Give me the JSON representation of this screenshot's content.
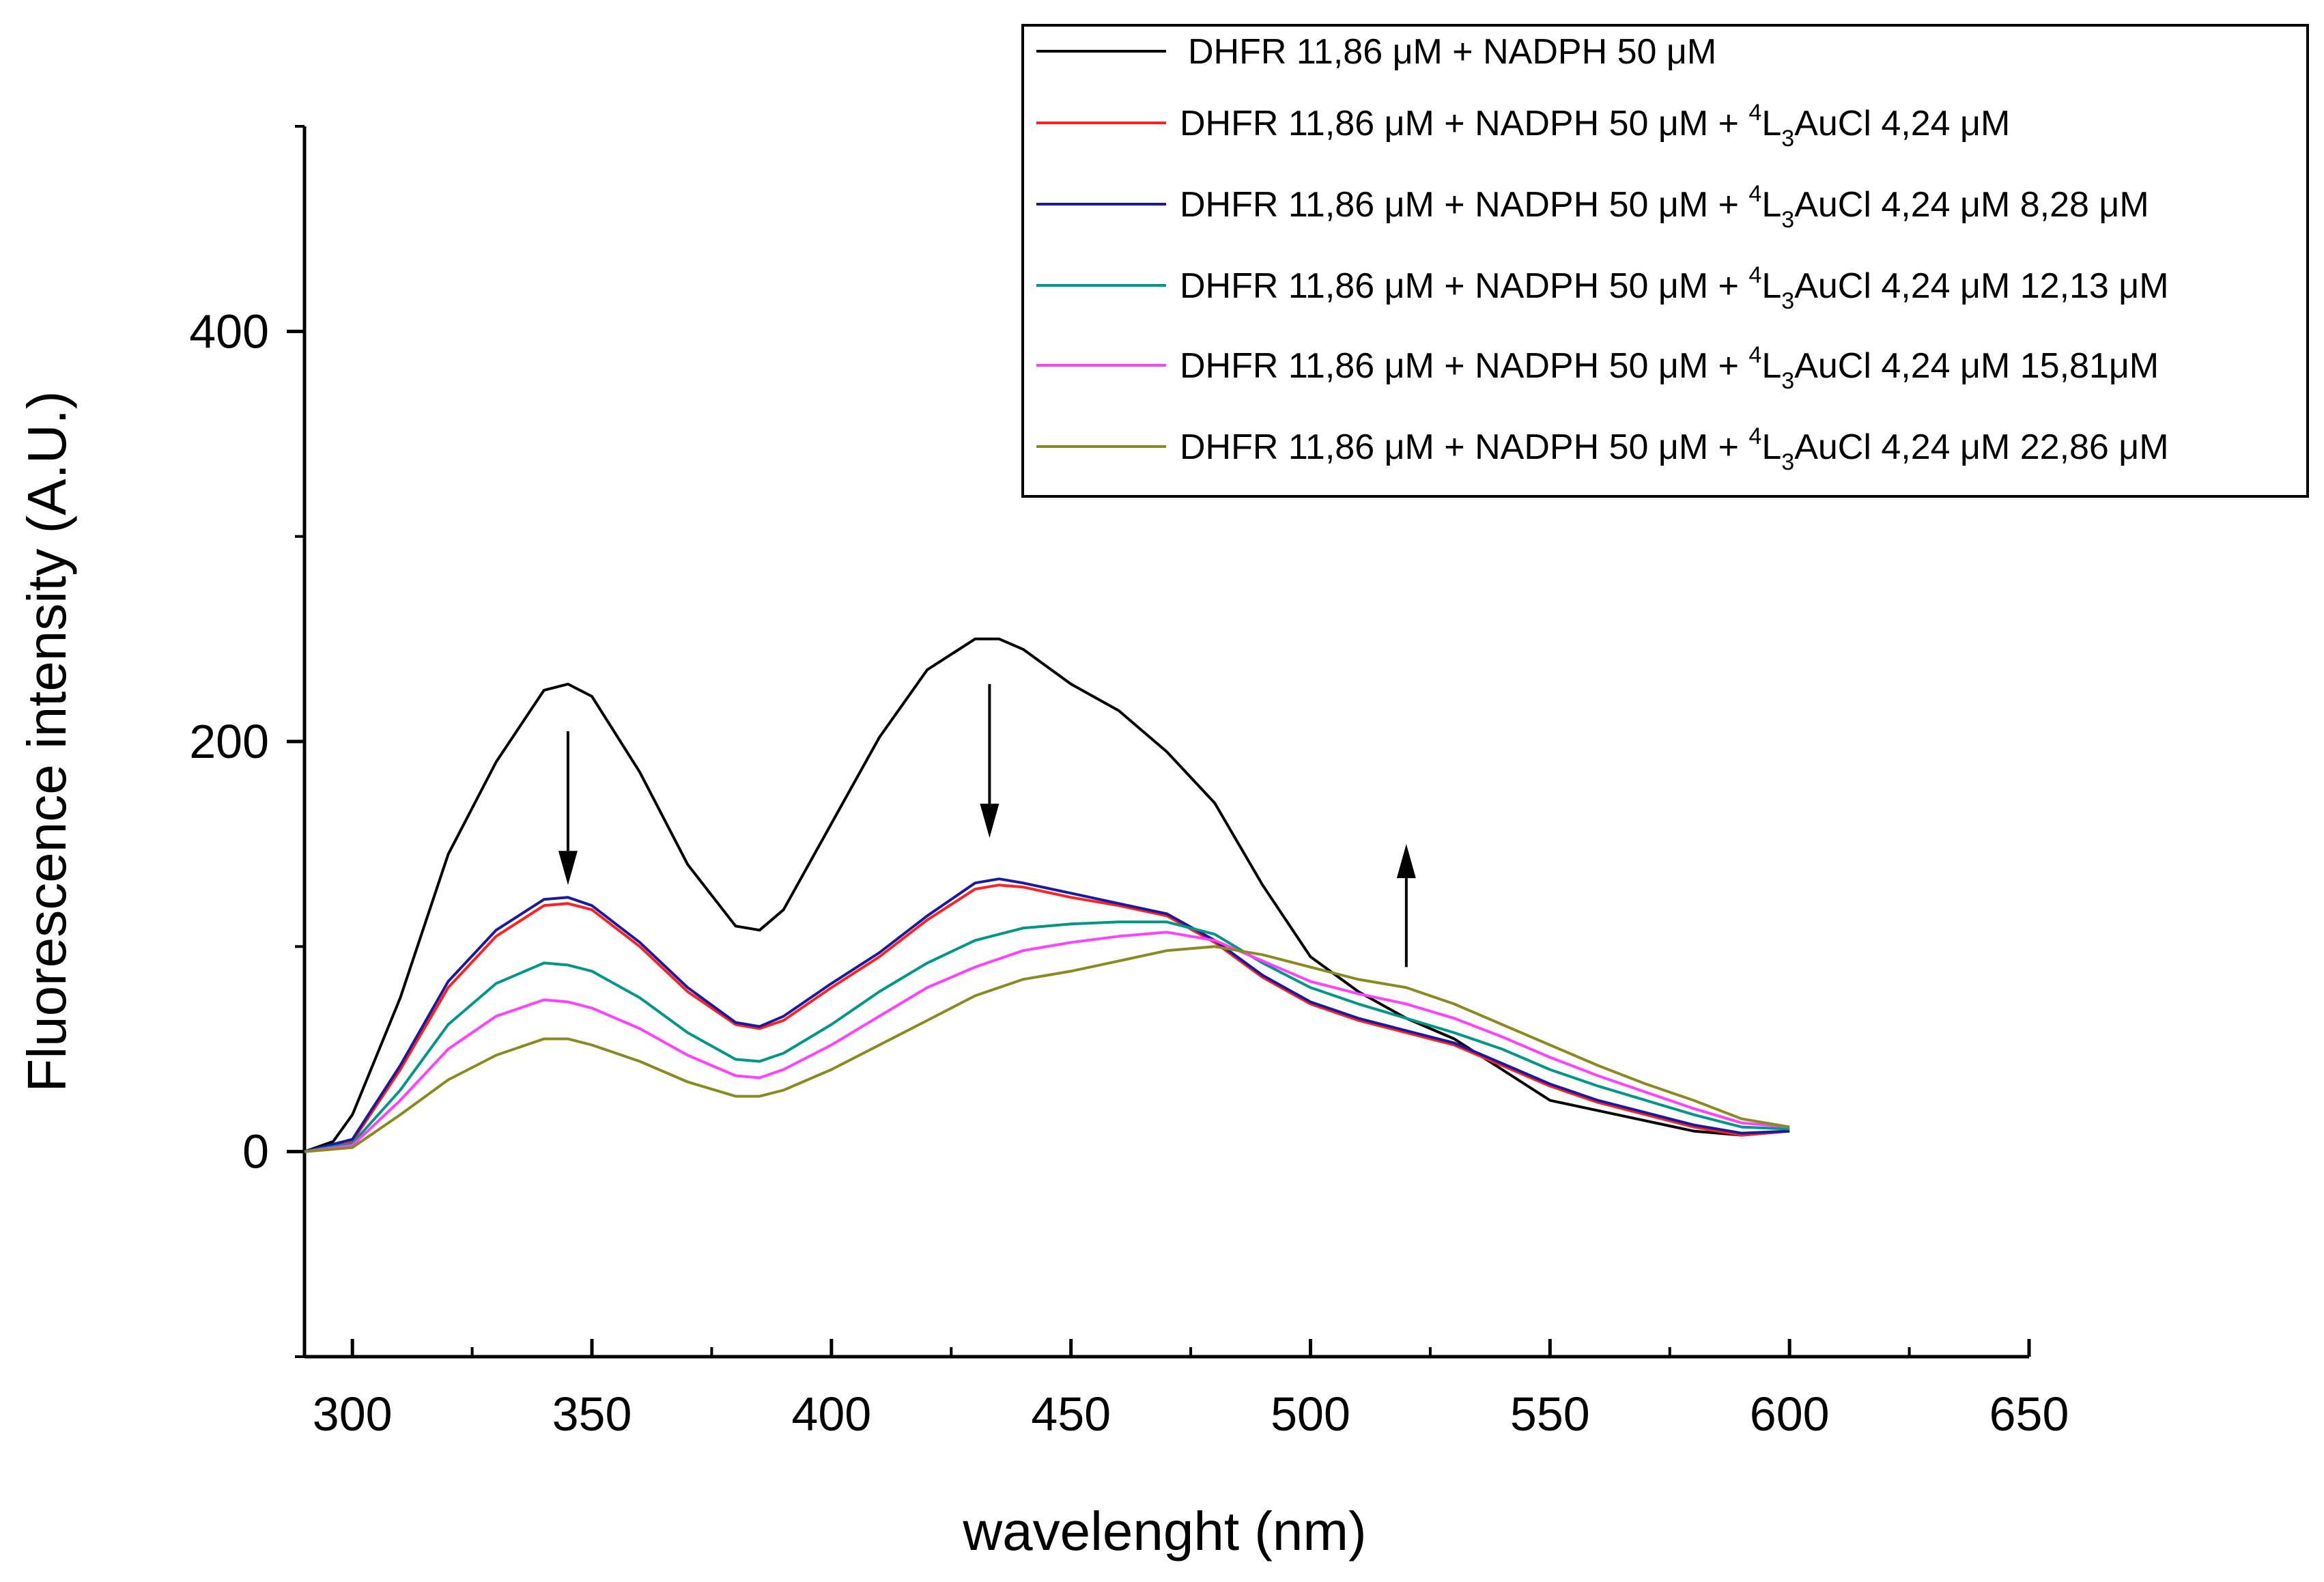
{
  "chart_data": {
    "type": "line",
    "title": "",
    "xlabel": "wavelenght (nm)",
    "ylabel": "Fluorescence intensity (A.U.)",
    "xlim": [
      290,
      650
    ],
    "ylim": [
      -100,
      500
    ],
    "xticks": [
      300,
      350,
      400,
      450,
      500,
      550,
      600,
      650
    ],
    "xtick_labels": [
      "300",
      "350",
      "400",
      "450",
      "500",
      "550",
      "600",
      "650"
    ],
    "yticks": [
      0,
      200,
      400
    ],
    "ytick_labels": [
      "0",
      "200",
      "400"
    ],
    "legend_position": "top-right",
    "series": [
      {
        "name": "DHFR 11,86 μM + NADPH 50 μM",
        "legend": {
          "before": "DHFR 11,86 μM + NADPH 50 μM",
          "sup": "",
          "mid": "",
          "sub": "",
          "after": ""
        },
        "color": "#000000",
        "x": [
          290,
          296,
          300,
          310,
          320,
          330,
          340,
          345,
          350,
          360,
          370,
          380,
          385,
          390,
          400,
          410,
          420,
          430,
          435,
          440,
          450,
          460,
          470,
          480,
          490,
          500,
          510,
          520,
          530,
          540,
          550,
          560,
          570,
          580,
          590,
          600
        ],
        "y": [
          0,
          5,
          18,
          75,
          145,
          190,
          225,
          228,
          222,
          185,
          140,
          110,
          108,
          118,
          160,
          202,
          235,
          250,
          250,
          245,
          228,
          215,
          195,
          170,
          130,
          95,
          78,
          65,
          55,
          40,
          25,
          20,
          15,
          10,
          8,
          10
        ]
      },
      {
        "name": "DHFR 11,86 μM + NADPH 50 μM + 4L3AuCl 4,24 μM",
        "legend": {
          "before": "DHFR 11,86 μM + NADPH 50 μM + ",
          "sup": "4",
          "mid": "L",
          "sub": "3",
          "after": "AuCl 4,24 μM"
        },
        "color": "#ff2020",
        "x": [
          290,
          300,
          310,
          320,
          330,
          340,
          345,
          350,
          360,
          370,
          380,
          385,
          390,
          400,
          410,
          420,
          430,
          435,
          440,
          450,
          460,
          470,
          480,
          490,
          500,
          510,
          520,
          530,
          540,
          550,
          560,
          570,
          580,
          590,
          600
        ],
        "y": [
          0,
          5,
          40,
          80,
          105,
          120,
          121,
          118,
          100,
          78,
          62,
          60,
          64,
          80,
          95,
          113,
          128,
          130,
          129,
          124,
          120,
          115,
          102,
          85,
          72,
          64,
          58,
          52,
          42,
          32,
          24,
          18,
          12,
          8,
          10
        ]
      },
      {
        "name": "DHFR 11,86 μM + NADPH 50 μM + 4L3AuCl 4,24 μM 8,28 μM",
        "legend": {
          "before": "DHFR 11,86 μM + NADPH 50 μM + ",
          "sup": "4",
          "mid": "L",
          "sub": "3",
          "after": "AuCl 4,24 μM 8,28 μM"
        },
        "color": "#1a1aa0",
        "x": [
          290,
          300,
          310,
          320,
          330,
          340,
          345,
          350,
          360,
          370,
          380,
          385,
          390,
          400,
          410,
          420,
          430,
          435,
          440,
          450,
          460,
          470,
          480,
          490,
          500,
          510,
          520,
          530,
          540,
          550,
          560,
          570,
          580,
          590,
          600
        ],
        "y": [
          0,
          6,
          42,
          83,
          108,
          123,
          124,
          120,
          102,
          80,
          63,
          61,
          66,
          82,
          97,
          115,
          131,
          133,
          131,
          126,
          121,
          116,
          103,
          86,
          73,
          65,
          59,
          53,
          43,
          33,
          25,
          19,
          13,
          9,
          10
        ]
      },
      {
        "name": "DHFR 11,86 μM + NADPH 50 μM + 4L3AuCl 4,24 μM 12,13 μM",
        "legend": {
          "before": "DHFR 11,86 μM + NADPH 50 μM + ",
          "sup": "4",
          "mid": "L",
          "sub": "3",
          "after": "AuCl 4,24 μM 12,13 μM"
        },
        "color": "#00968a",
        "x": [
          290,
          300,
          310,
          320,
          330,
          340,
          345,
          350,
          360,
          370,
          380,
          385,
          390,
          400,
          410,
          420,
          430,
          440,
          450,
          460,
          470,
          480,
          490,
          500,
          510,
          520,
          530,
          540,
          550,
          560,
          570,
          580,
          590,
          600
        ],
        "y": [
          0,
          4,
          30,
          62,
          82,
          92,
          91,
          88,
          75,
          58,
          45,
          44,
          48,
          62,
          78,
          92,
          103,
          109,
          111,
          112,
          112,
          106,
          92,
          80,
          72,
          65,
          58,
          50,
          40,
          32,
          25,
          18,
          12,
          11
        ]
      },
      {
        "name": "DHFR 11,86 μM + NADPH 50 μM + 4L3AuCl 4,24 μM 15,81μM",
        "legend": {
          "before": "DHFR 11,86 μM + NADPH 50 μM + ",
          "sup": "4",
          "mid": "L",
          "sub": "3",
          "after": "AuCl 4,24 μM 15,81μM"
        },
        "color": "#ff40ff",
        "x": [
          290,
          300,
          310,
          320,
          330,
          340,
          345,
          350,
          360,
          370,
          380,
          385,
          390,
          400,
          410,
          420,
          430,
          440,
          450,
          460,
          470,
          480,
          490,
          500,
          510,
          520,
          530,
          540,
          550,
          560,
          570,
          580,
          590,
          600
        ],
        "y": [
          0,
          3,
          25,
          50,
          66,
          74,
          73,
          70,
          60,
          47,
          37,
          36,
          40,
          52,
          66,
          80,
          90,
          98,
          102,
          105,
          107,
          103,
          93,
          83,
          77,
          72,
          65,
          56,
          46,
          37,
          29,
          21,
          14,
          12
        ]
      },
      {
        "name": "DHFR 11,86 μM + NADPH 50 μM + 4L3AuCl 4,24 μM 22,86 μM",
        "legend": {
          "before": "DHFR 11,86 μM + NADPH 50 μM + ",
          "sup": "4",
          "mid": "L",
          "sub": "3",
          "after": "AuCl 4,24 μM 22,86 μM"
        },
        "color": "#8a8a20",
        "x": [
          290,
          300,
          310,
          320,
          330,
          340,
          345,
          350,
          360,
          370,
          380,
          385,
          390,
          400,
          410,
          420,
          430,
          440,
          450,
          460,
          470,
          480,
          490,
          500,
          510,
          520,
          530,
          540,
          550,
          560,
          570,
          580,
          590,
          600
        ],
        "y": [
          0,
          2,
          18,
          35,
          47,
          55,
          55,
          52,
          44,
          34,
          27,
          27,
          30,
          40,
          52,
          64,
          76,
          84,
          88,
          93,
          98,
          100,
          96,
          90,
          84,
          80,
          72,
          62,
          52,
          42,
          33,
          25,
          16,
          12
        ]
      }
    ],
    "annotations": [
      {
        "type": "arrow",
        "direction": "down",
        "x": 345,
        "y_from": 205,
        "y_to": 130
      },
      {
        "type": "arrow",
        "direction": "down",
        "x": 433,
        "y_from": 228,
        "y_to": 153
      },
      {
        "type": "arrow",
        "direction": "up",
        "x": 520,
        "y_from": 90,
        "y_to": 150
      }
    ]
  }
}
